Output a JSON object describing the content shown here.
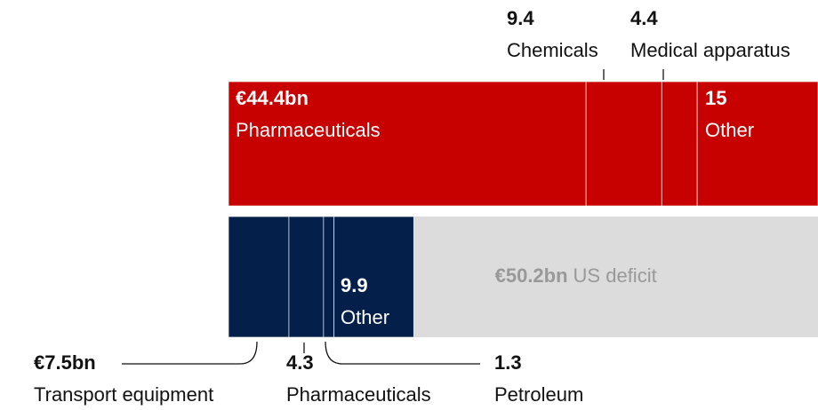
{
  "chart_data": {
    "type": "bar",
    "stacked": true,
    "bars": [
      {
        "segments": [
          {
            "name": "Pharmaceuticals",
            "value": 44.4,
            "value_label": "€44.4bn",
            "color": "#c70000"
          },
          {
            "name": "Chemicals",
            "value": 9.4,
            "color": "#c70000"
          },
          {
            "name": "Medical apparatus",
            "value": 4.4,
            "color": "#c70000"
          },
          {
            "name": "Other",
            "value": 15,
            "color": "#c70000"
          }
        ]
      },
      {
        "segments": [
          {
            "name": "Transport equipment",
            "value": 7.5,
            "value_label": "€7.5bn",
            "color": "#041f4a"
          },
          {
            "name": "Pharmaceuticals",
            "value": 4.3,
            "color": "#041f4a"
          },
          {
            "name": "Petroleum",
            "value": 1.3,
            "color": "#041f4a"
          },
          {
            "name": "Other",
            "value": 9.9,
            "color": "#041f4a"
          },
          {
            "name": "US deficit",
            "value": 50.2,
            "value_label": "€50.2bn",
            "color": "#dcdcdc"
          }
        ]
      }
    ]
  }
}
